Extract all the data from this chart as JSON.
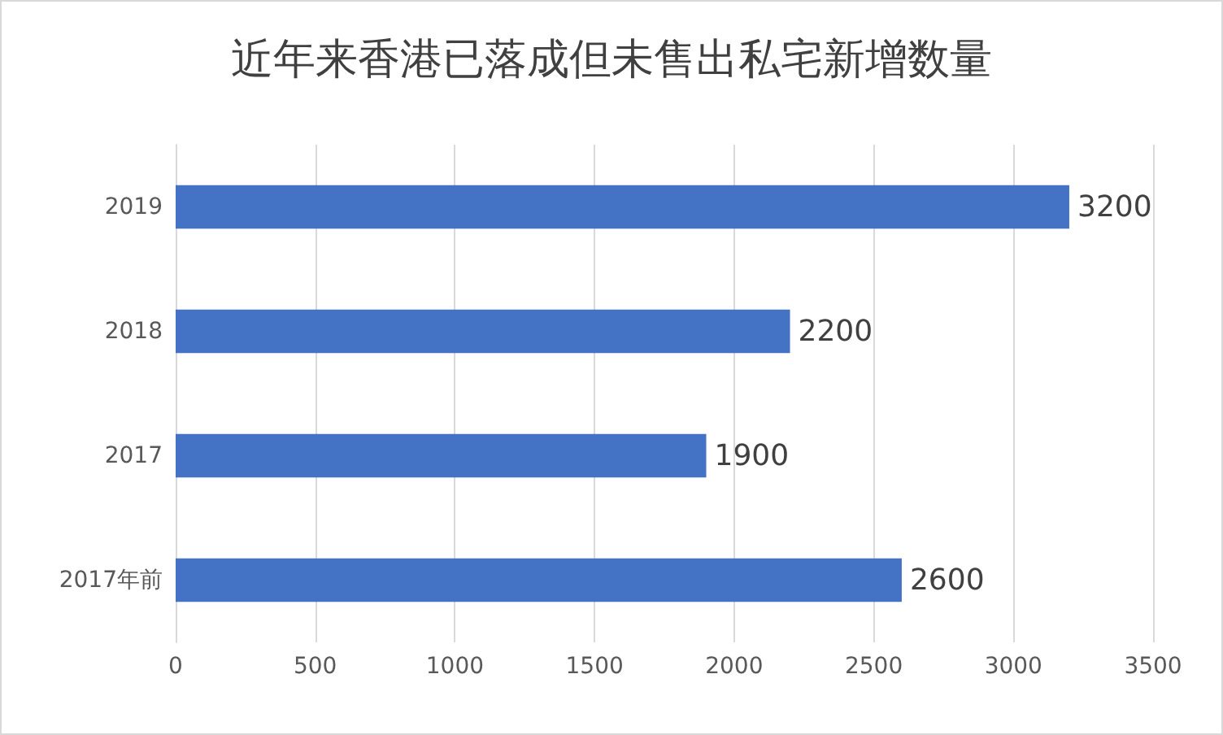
{
  "chart_data": {
    "type": "bar",
    "orientation": "horizontal",
    "title": "近年来香港已落成但未售出私宅新增数量",
    "categories": [
      "2019",
      "2018",
      "2017",
      "2017年前"
    ],
    "values": [
      3200,
      2200,
      1900,
      2600
    ],
    "color": "#4472c4",
    "xlim": [
      0,
      3500
    ],
    "xticks": [
      0,
      500,
      1000,
      1500,
      2000,
      2500,
      3000,
      3500
    ],
    "grid": "x",
    "data_labels": true
  }
}
